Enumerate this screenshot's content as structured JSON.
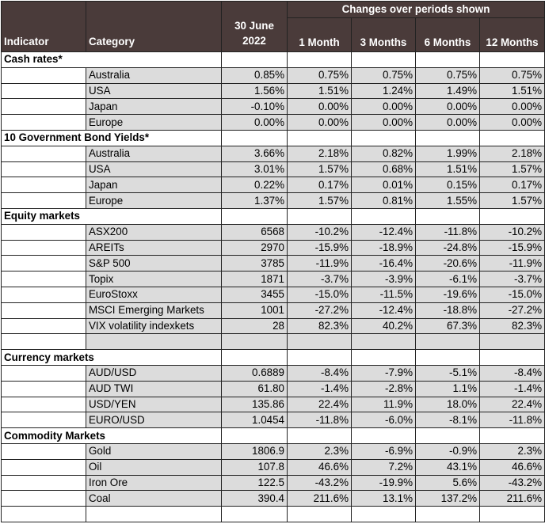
{
  "header": {
    "indicator": "Indicator",
    "category": "Category",
    "date_line1": "30 June",
    "date_line2": "2022",
    "changes_title": "Changes over periods shown",
    "periods": [
      "1 Month",
      "3 Months",
      "6 Months",
      "12 Months"
    ]
  },
  "sections": [
    {
      "title": "Cash rates*",
      "rows": [
        {
          "category": "Australia",
          "value": "0.85%",
          "changes": [
            "0.75%",
            "0.75%",
            "0.75%",
            "0.75%"
          ]
        },
        {
          "category": "USA",
          "value": "1.56%",
          "changes": [
            "1.51%",
            "1.24%",
            "1.49%",
            "1.51%"
          ]
        },
        {
          "category": "Japan",
          "value": "-0.10%",
          "changes": [
            "0.00%",
            "0.00%",
            "0.00%",
            "0.00%"
          ]
        },
        {
          "category": "Europe",
          "value": "0.00%",
          "changes": [
            "0.00%",
            "0.00%",
            "0.00%",
            "0.00%"
          ]
        }
      ]
    },
    {
      "title": "10 Government Bond Yields*",
      "rows": [
        {
          "category": "Australia",
          "value": "3.66%",
          "changes": [
            "2.18%",
            "0.82%",
            "1.99%",
            "2.18%"
          ]
        },
        {
          "category": "USA",
          "value": "3.01%",
          "changes": [
            "1.57%",
            "0.68%",
            "1.51%",
            "1.57%"
          ]
        },
        {
          "category": "Japan",
          "value": "0.22%",
          "changes": [
            "0.17%",
            "0.01%",
            "0.15%",
            "0.17%"
          ]
        },
        {
          "category": "Europe",
          "value": "1.37%",
          "changes": [
            "1.57%",
            "0.81%",
            "1.55%",
            "1.57%"
          ]
        }
      ]
    },
    {
      "title": "Equity markets",
      "rows": [
        {
          "category": "ASX200",
          "value": "6568",
          "changes": [
            "-10.2%",
            "-12.4%",
            "-11.8%",
            "-10.2%"
          ]
        },
        {
          "category": "AREITs",
          "value": "2970",
          "changes": [
            "-15.9%",
            "-18.9%",
            "-24.8%",
            "-15.9%"
          ]
        },
        {
          "category": "S&P 500",
          "value": "3785",
          "changes": [
            "-11.9%",
            "-16.4%",
            "-20.6%",
            "-11.9%"
          ]
        },
        {
          "category": "Topix",
          "value": "1871",
          "changes": [
            "-3.7%",
            "-3.9%",
            "-6.1%",
            "-3.7%"
          ]
        },
        {
          "category": "EuroStoxx",
          "value": "3455",
          "changes": [
            "-15.0%",
            "-11.5%",
            "-19.6%",
            "-15.0%"
          ]
        },
        {
          "category": "MSCI Emerging Markets",
          "value": "1001",
          "changes": [
            "-27.2%",
            "-12.4%",
            "-18.8%",
            "-27.2%"
          ]
        },
        {
          "category": "VIX volatility indexkets",
          "value": "28",
          "changes": [
            "82.3%",
            "40.2%",
            "67.3%",
            "82.3%"
          ]
        }
      ],
      "trailing_blank": true
    },
    {
      "title": "Currency markets",
      "rows": [
        {
          "category": "AUD/USD",
          "value": "0.6889",
          "changes": [
            "-8.4%",
            "-7.9%",
            "-5.1%",
            "-8.4%"
          ]
        },
        {
          "category": "AUD TWI",
          "value": "61.80",
          "changes": [
            "-1.4%",
            "-2.8%",
            "1.1%",
            "-1.4%"
          ]
        },
        {
          "category": "USD/YEN",
          "value": "135.86",
          "changes": [
            "22.4%",
            "11.9%",
            "18.0%",
            "22.4%"
          ]
        },
        {
          "category": "EURO/USD",
          "value": "1.0454",
          "changes": [
            "-11.8%",
            "-6.0%",
            "-8.1%",
            "-11.8%"
          ]
        }
      ]
    },
    {
      "title": "Commodity Markets",
      "rows": [
        {
          "category": "Gold",
          "value": "1806.9",
          "changes": [
            "2.3%",
            "-6.9%",
            "-0.9%",
            "2.3%"
          ]
        },
        {
          "category": "Oil",
          "value": "107.8",
          "changes": [
            "46.6%",
            "7.2%",
            "43.1%",
            "46.6%"
          ]
        },
        {
          "category": "Iron Ore",
          "value": "122.5",
          "changes": [
            "-43.2%",
            "-19.9%",
            "5.6%",
            "-43.2%"
          ]
        },
        {
          "category": "Coal",
          "value": "390.4",
          "changes": [
            "211.6%",
            "13.1%",
            "137.2%",
            "211.6%"
          ]
        }
      ],
      "trailing_blank_white": true
    }
  ]
}
